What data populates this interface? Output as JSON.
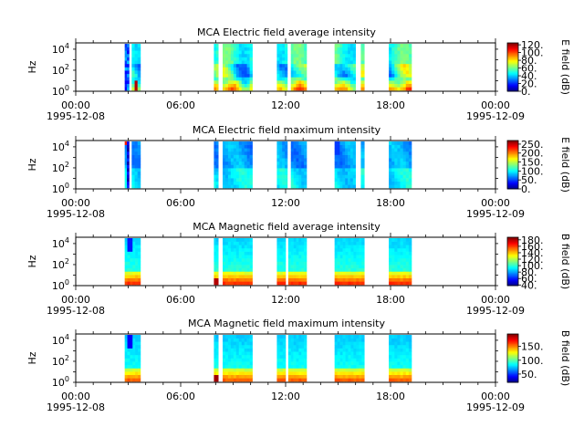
{
  "chart_data": [
    {
      "type": "heatmap",
      "title": "MCA  Electric field average intensity",
      "ylabel": "Hz",
      "y_scale": "log",
      "y_ticks": [
        {
          "exp": "0"
        },
        {
          "exp": "2"
        },
        {
          "exp": "4"
        }
      ],
      "x_ticks": [
        "00:00",
        "06:00",
        "12:00",
        "18:00",
        "00:00"
      ],
      "x_dates": [
        "1995-12-08",
        "1995-12-09"
      ],
      "colorbar": {
        "label": "E field (dB)",
        "min": 0,
        "max": 125,
        "ticks": [
          "0.",
          "20.",
          "40.",
          "60.",
          "80.",
          "100.",
          "120."
        ],
        "tick_values": [
          0,
          20,
          40,
          60,
          80,
          100,
          120
        ]
      },
      "data_intervals_hours": [
        [
          2.8,
          3.05
        ],
        [
          3.2,
          3.7
        ],
        [
          7.9,
          8.15
        ],
        [
          8.4,
          10.1
        ],
        [
          11.5,
          12.1
        ],
        [
          12.3,
          13.2
        ],
        [
          14.8,
          16.0
        ],
        [
          16.3,
          16.5
        ],
        [
          17.9,
          19.2
        ]
      ],
      "level": "avg-e"
    },
    {
      "type": "heatmap",
      "title": "MCA  Electric field maximum intensity",
      "ylabel": "Hz",
      "y_scale": "log",
      "y_ticks": [
        {
          "exp": "0"
        },
        {
          "exp": "2"
        },
        {
          "exp": "4"
        }
      ],
      "x_ticks": [
        "00:00",
        "06:00",
        "12:00",
        "18:00",
        "00:00"
      ],
      "x_dates": [
        "1995-12-08",
        "1995-12-09"
      ],
      "colorbar": {
        "label": "E field (dB)",
        "min": 0,
        "max": 270,
        "ticks": [
          "0.",
          "50.",
          "100.",
          "150.",
          "200.",
          "250."
        ],
        "tick_values": [
          0,
          50,
          100,
          150,
          200,
          250
        ]
      },
      "data_intervals_hours": [
        [
          2.8,
          3.05
        ],
        [
          3.2,
          3.7
        ],
        [
          7.9,
          8.15
        ],
        [
          8.4,
          10.1
        ],
        [
          11.5,
          12.1
        ],
        [
          12.3,
          13.2
        ],
        [
          14.8,
          16.0
        ],
        [
          16.3,
          16.5
        ],
        [
          17.9,
          19.2
        ]
      ],
      "level": "max-e"
    },
    {
      "type": "heatmap",
      "title": "MCA  Magnetic field average intensity",
      "ylabel": "Hz",
      "y_scale": "log",
      "y_ticks": [
        {
          "exp": "0"
        },
        {
          "exp": "2"
        },
        {
          "exp": "4"
        }
      ],
      "x_ticks": [
        "00:00",
        "06:00",
        "12:00",
        "18:00",
        "00:00"
      ],
      "x_dates": [
        "1995-12-08",
        "1995-12-09"
      ],
      "colorbar": {
        "label": "B field (dB)",
        "min": 38,
        "max": 188,
        "ticks": [
          "40.",
          "60.",
          "80.",
          "100.",
          "120.",
          "140.",
          "160.",
          "180."
        ],
        "tick_values": [
          40,
          60,
          80,
          100,
          120,
          140,
          160,
          180
        ]
      },
      "data_intervals_hours": [
        [
          2.8,
          3.7
        ],
        [
          7.9,
          8.15
        ],
        [
          8.4,
          10.1
        ],
        [
          11.5,
          12.0
        ],
        [
          12.15,
          13.2
        ],
        [
          14.8,
          16.5
        ],
        [
          17.9,
          19.2
        ]
      ],
      "level": "avg-b"
    },
    {
      "type": "heatmap",
      "title": "MCA  Magnetic field maximum intensity",
      "ylabel": "Hz",
      "y_scale": "log",
      "y_ticks": [
        {
          "exp": "0"
        },
        {
          "exp": "2"
        },
        {
          "exp": "4"
        }
      ],
      "x_ticks": [
        "00:00",
        "06:00",
        "12:00",
        "18:00",
        "00:00"
      ],
      "x_dates": [
        "1995-12-08",
        "1995-12-09"
      ],
      "colorbar": {
        "label": "B field (dB)",
        "min": 20,
        "max": 195,
        "ticks": [
          "50.",
          "100.",
          "150."
        ],
        "tick_values": [
          50,
          100,
          150
        ]
      },
      "data_intervals_hours": [
        [
          2.8,
          3.7
        ],
        [
          7.9,
          8.15
        ],
        [
          8.4,
          10.1
        ],
        [
          11.5,
          12.0
        ],
        [
          12.15,
          13.2
        ],
        [
          14.8,
          16.5
        ],
        [
          17.9,
          19.2
        ]
      ],
      "level": "max-b"
    }
  ]
}
